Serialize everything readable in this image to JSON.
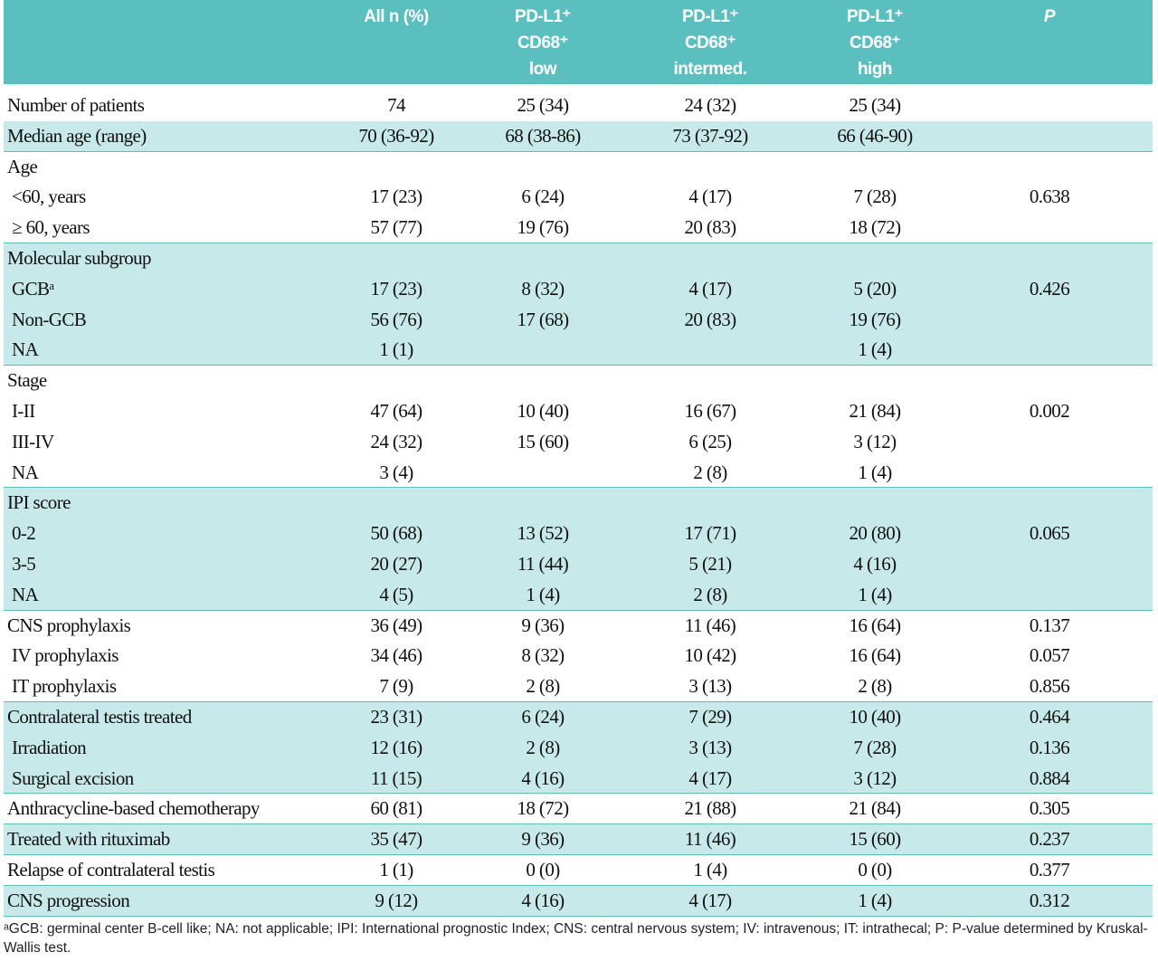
{
  "header": [
    "All n (%)",
    [
      "PD-L1⁺",
      "CD68⁺",
      "low"
    ],
    [
      "PD-L1⁺",
      "CD68⁺",
      "intermed."
    ],
    [
      "PD-L1⁺",
      "CD68⁺",
      "high"
    ],
    "P"
  ],
  "rows": [
    {
      "label": "Number of patients",
      "cells": [
        "74",
        "25 (34)",
        "24 (32)",
        "25 (34)",
        null
      ]
    },
    {
      "label": "Median age (range)",
      "cells": [
        "70 (36-92)",
        "68 (38-86)",
        "73 (37-92)",
        "66 (46-90)",
        null
      ]
    },
    {
      "label": "Age"
    },
    {
      "label": "<60, years",
      "cells": [
        "17 (23)",
        "6 (24)",
        "4 (17)",
        "7 (28)",
        "0.638"
      ]
    },
    {
      "label": "≥ 60, years",
      "cells": [
        "57 (77)",
        "19 (76)",
        "20 (83)",
        "18 (72)",
        null
      ]
    },
    {
      "label": "Molecular subgroup"
    },
    {
      "label": "GCBᵃ",
      "cells": [
        "17 (23)",
        "8 (32)",
        "4 (17)",
        "5 (20)",
        "0.426"
      ]
    },
    {
      "label": "Non-GCB",
      "cells": [
        "56 (76)",
        "17 (68)",
        "20 (83)",
        "19 (76)",
        null
      ]
    },
    {
      "label": "NA",
      "cells": [
        "1 (1)",
        null,
        null,
        "1 (4)",
        null
      ]
    },
    {
      "label": "Stage"
    },
    {
      "label": "I-II",
      "cells": [
        "47 (64)",
        "10 (40)",
        "16 (67)",
        "21 (84)",
        "0.002"
      ]
    },
    {
      "label": "III-IV",
      "cells": [
        "24 (32)",
        "15 (60)",
        "6 (25)",
        "3 (12)",
        null
      ]
    },
    {
      "label": "NA",
      "cells": [
        "3 (4)",
        null,
        "2 (8)",
        "1 (4)",
        null
      ]
    },
    {
      "label": "IPI score"
    },
    {
      "label": "0-2",
      "cells": [
        "50 (68)",
        "13 (52)",
        "17 (71)",
        "20 (80)",
        "0.065"
      ]
    },
    {
      "label": "3-5",
      "cells": [
        "20 (27)",
        "11 (44)",
        "5 (21)",
        "4 (16)",
        null
      ]
    },
    {
      "label": "NA",
      "cells": [
        "4 (5)",
        "1 (4)",
        "2 (8)",
        "1 (4)",
        null
      ]
    },
    {
      "label": "CNS prophylaxis",
      "cells": [
        "36 (49)",
        "9 (36)",
        "11 (46)",
        "16 (64)",
        "0.137"
      ]
    },
    {
      "label": "IV prophylaxis",
      "cells": [
        "34 (46)",
        "8 (32)",
        "10 (42)",
        "16 (64)",
        "0.057"
      ]
    },
    {
      "label": "IT prophylaxis",
      "cells": [
        "7 (9)",
        "2 (8)",
        "3 (13)",
        "2 (8)",
        "0.856"
      ]
    },
    {
      "label": "Contralateral testis treated",
      "cells": [
        "23 (31)",
        "6 (24)",
        "7 (29)",
        "10 (40)",
        "0.464"
      ]
    },
    {
      "label": "Irradiation",
      "cells": [
        "12 (16)",
        "2 (8)",
        "3 (13)",
        "7 (28)",
        "0.136"
      ]
    },
    {
      "label": "Surgical excision",
      "cells": [
        "11 (15)",
        "4 (16)",
        "4 (17)",
        "3 (12)",
        "0.884"
      ]
    },
    {
      "label": "Anthracycline-based chemotherapy",
      "cells": [
        "60 (81)",
        "18 (72)",
        "21 (88)",
        "21 (84)",
        "0.305"
      ]
    },
    {
      "label": "Treated with rituximab",
      "cells": [
        "35 (47)",
        "9 (36)",
        "11 (46)",
        "15 (60)",
        "0.237"
      ]
    },
    {
      "label": "Relapse of contralateral testis",
      "cells": [
        "1 (1)",
        "0 (0)",
        "1 (4)",
        "0 (0)",
        "0.377"
      ]
    },
    {
      "label": "CNS progression",
      "cells": [
        "9 (12)",
        "4 (16)",
        "4 (17)",
        "1 (4)",
        "0.312"
      ]
    }
  ],
  "footnote": "ᵃGCB: germinal center B-cell like; NA: not applicable; IPI: International prognostic Index; CNS: central nervous system; IV: intravenous; IT: intrathecal; P: P-value determined by Kruskal-Wallis test."
}
